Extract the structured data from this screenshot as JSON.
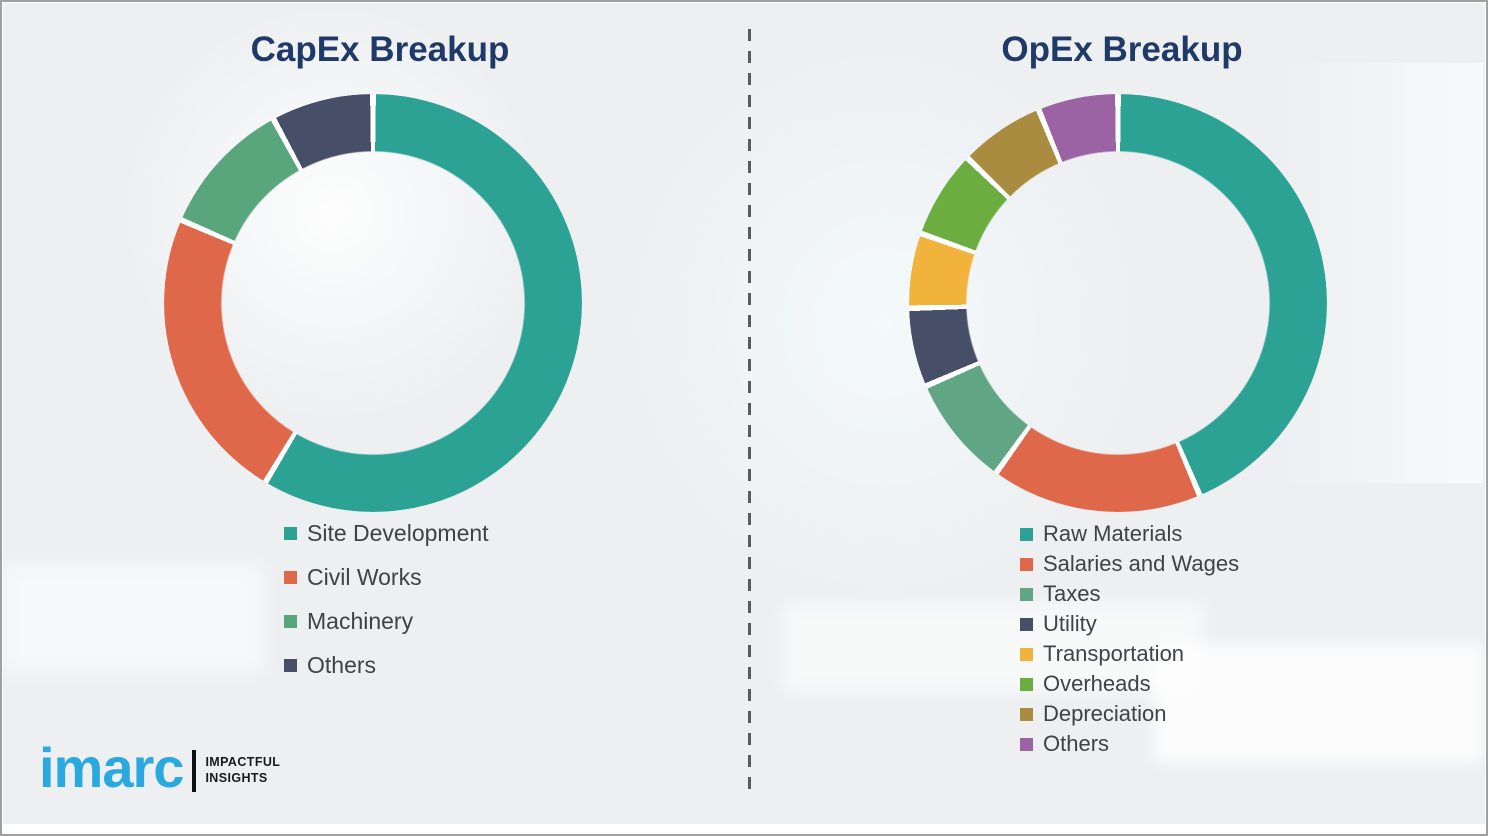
{
  "chart_data": [
    {
      "type": "pie",
      "subtype": "donut",
      "title": "CapEx Breakup",
      "labels": [
        "Site Development",
        "Civil Works",
        "Machinery",
        "Others"
      ],
      "values": [
        58.6,
        22.9,
        10.6,
        7.9
      ],
      "colors": [
        "#2ba294",
        "#e0684a",
        "#59a57c",
        "#474e68"
      ],
      "start_angle_deg": 0,
      "direction": "clockwise",
      "legend_position": "below-left",
      "hole_ratio": 0.73,
      "segment_gap_color": "#ffffff"
    },
    {
      "type": "pie",
      "subtype": "donut",
      "title": "OpEx Breakup",
      "labels": [
        "Raw Materials",
        "Salaries and Wages",
        "Taxes",
        "Utility",
        "Transportation",
        "Overheads",
        "Depreciation",
        "Others"
      ],
      "values": [
        43.6,
        16.3,
        8.6,
        6.1,
        5.8,
        6.8,
        6.6,
        6.2
      ],
      "colors": [
        "#2ba294",
        "#e0684a",
        "#60a584",
        "#474e68",
        "#f2b33d",
        "#6cad40",
        "#a98c3f",
        "#9b63a3"
      ],
      "start_angle_deg": 0,
      "direction": "clockwise",
      "legend_position": "below-left",
      "hole_ratio": 0.73,
      "segment_gap_color": "#ffffff"
    }
  ],
  "logo": {
    "brand": "imarc",
    "tagline_line1": "IMPACTFUL",
    "tagline_line2": "INSIGHTS",
    "brand_color": "#2aa9e0"
  },
  "styles": {
    "title_color": "#1f3a68",
    "legend_text_color": "#3f4347",
    "background_color": "#edeff1",
    "divider_color": "#595c5e"
  }
}
